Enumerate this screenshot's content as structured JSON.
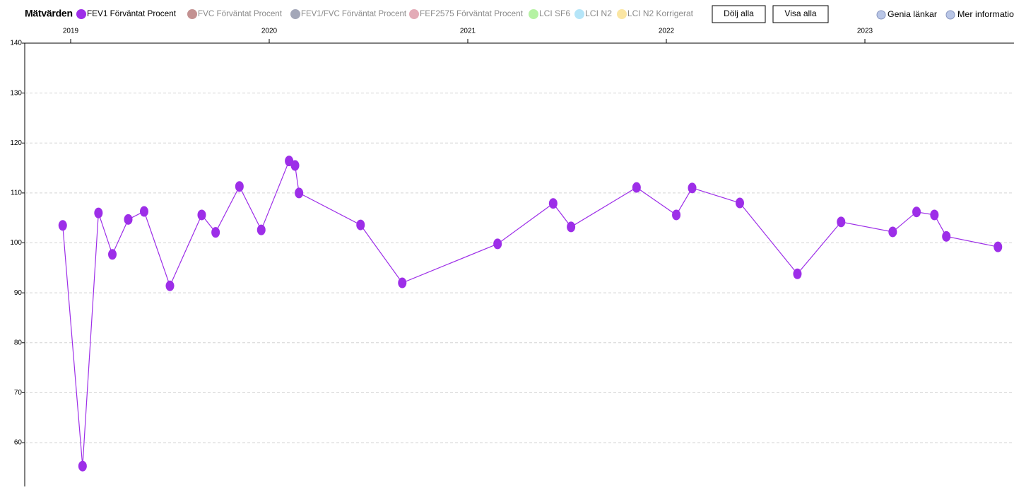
{
  "ui": {
    "section_title": "Mätvärden",
    "buttons": [
      "Dölj alla",
      "Visa alla"
    ],
    "links": [
      "Genia länkar",
      "Mer informatio"
    ]
  },
  "chart_data": {
    "type": "line",
    "series": [
      {
        "name": "FEV1 Förväntat Procent",
        "color": "#9d2ee8",
        "x": [
          2018.96,
          2019.06,
          2019.14,
          2019.21,
          2019.29,
          2019.37,
          2019.5,
          2019.66,
          2019.73,
          2019.85,
          2019.96,
          2020.1,
          2020.13,
          2020.15,
          2020.46,
          2020.67,
          2021.15,
          2021.43,
          2021.52,
          2021.85,
          2022.05,
          2022.13,
          2022.37,
          2022.66,
          2022.88,
          2023.14,
          2023.26,
          2023.35,
          2023.41,
          2023.67
        ],
        "values": [
          103.5,
          55.3,
          106.0,
          97.7,
          104.7,
          106.3,
          91.4,
          105.6,
          102.1,
          111.3,
          102.6,
          116.4,
          115.5,
          110.0,
          103.6,
          92.0,
          99.8,
          107.9,
          103.2,
          111.1,
          105.6,
          111.0,
          108.0,
          93.8,
          104.2,
          102.2,
          106.2,
          105.6,
          101.3,
          99.2
        ]
      }
    ],
    "hidden_series": [
      {
        "name": "FVC Förväntat Procent",
        "color": "#c39191"
      },
      {
        "name": "FEV1/FVC Förväntat Procent",
        "color": "#a3a7b8"
      },
      {
        "name": "FEF2575 Förväntat Procent",
        "color": "#e3abb7"
      },
      {
        "name": "LCI SF6",
        "color": "#b5f2a3"
      },
      {
        "name": "LCI N2",
        "color": "#b5e5f8"
      },
      {
        "name": "LCI N2 Korrigerat",
        "color": "#fbe6a3"
      }
    ],
    "xlim": [
      2018.77,
      2023.75
    ],
    "xticks": [
      2019,
      2020,
      2021,
      2022,
      2023
    ],
    "ylim": [
      51,
      140
    ],
    "yticks": [
      60,
      70,
      80,
      90,
      100,
      110,
      120,
      130,
      140
    ],
    "grid": true
  }
}
